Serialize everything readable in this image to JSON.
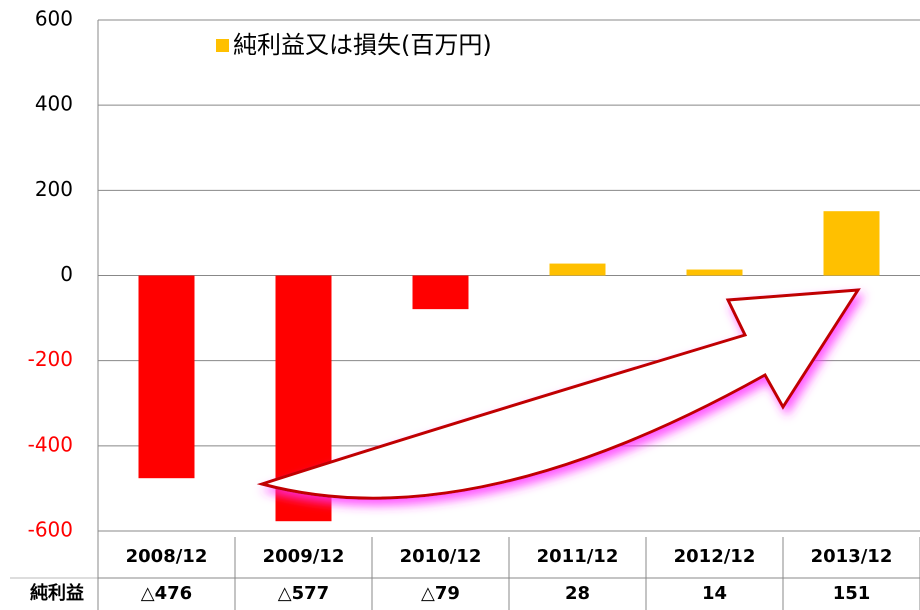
{
  "chart_data": {
    "type": "bar",
    "categories": [
      "2008/12",
      "2009/12",
      "2010/12",
      "2011/12",
      "2012/12",
      "2013/12"
    ],
    "series": [
      {
        "name": "純利益又は損失(百万円)",
        "color": "#ffc000",
        "negative_color": "#ff0000",
        "values": [
          -476,
          -577,
          -79,
          28,
          14,
          151
        ],
        "value_labels": [
          "△476",
          "△577",
          "△79",
          "28",
          "14",
          "151"
        ]
      }
    ],
    "table_row_label": "純利益",
    "ylim": [
      -600,
      600
    ],
    "yticks": [
      -600,
      -400,
      -200,
      0,
      200,
      400,
      600
    ],
    "negative_tick_color": "#ff0000",
    "grid": true
  }
}
